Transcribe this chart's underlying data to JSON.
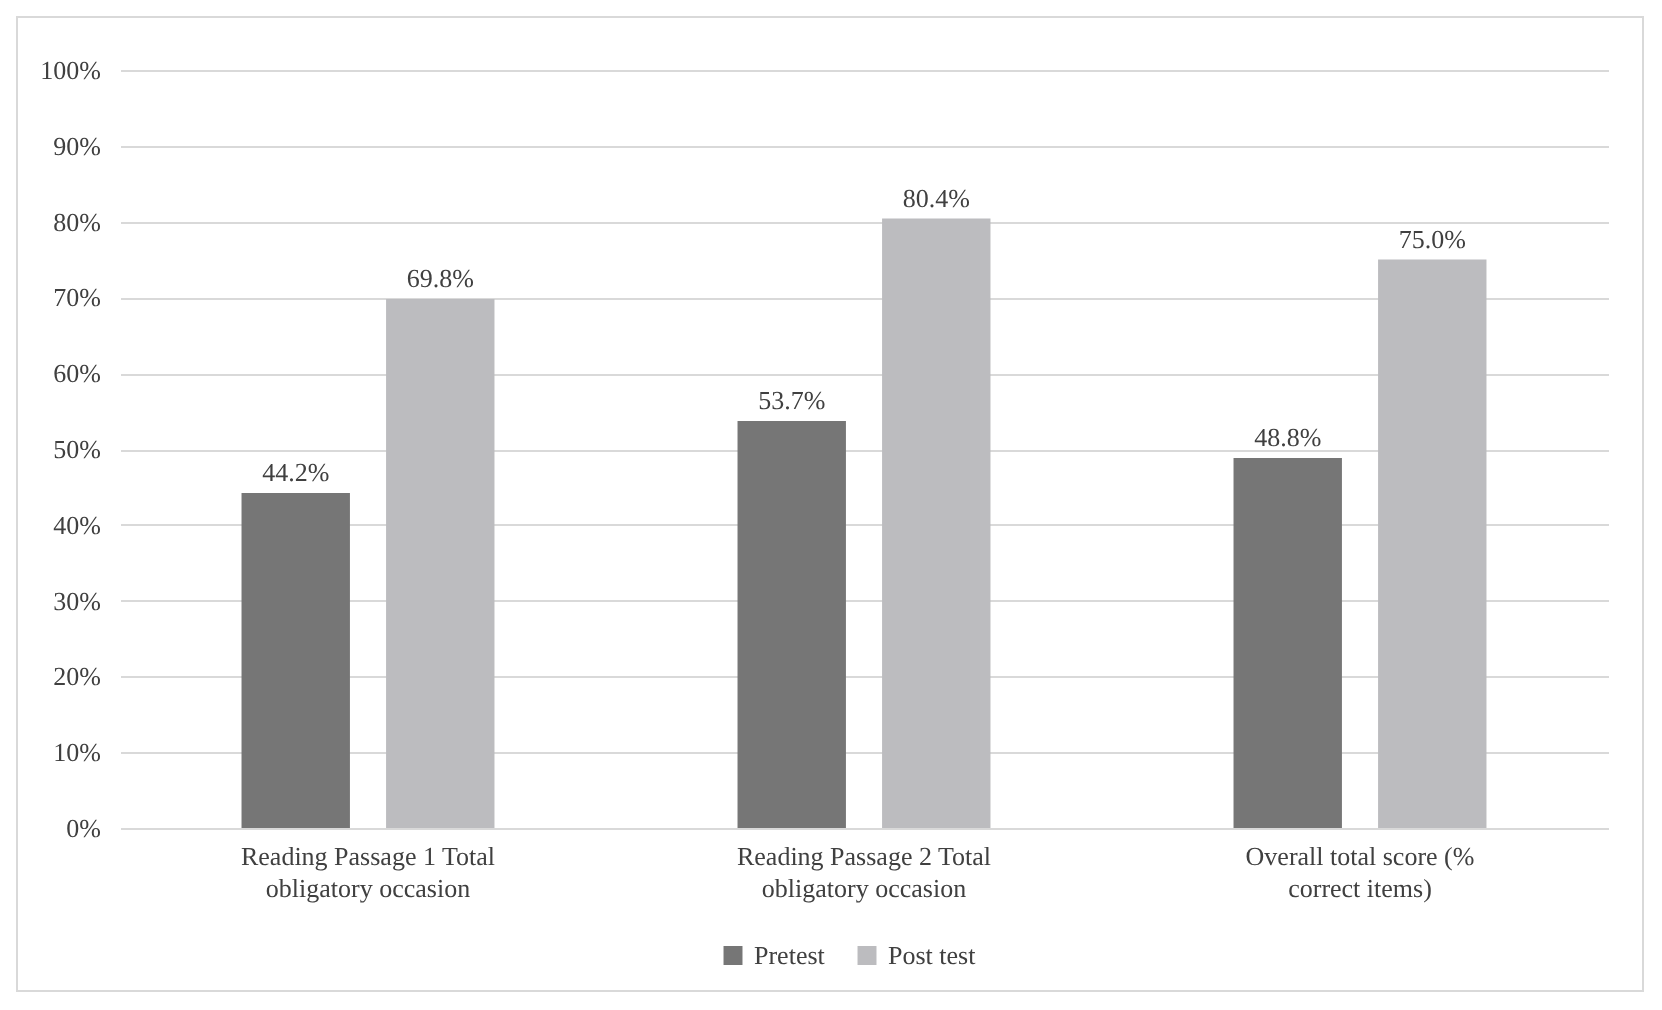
{
  "chart_data": {
    "type": "bar",
    "categories": [
      "Reading Passage 1 Total obligatory occasion",
      "Reading Passage 2 Total obligatory occasion",
      "Overall total score (% correct items)"
    ],
    "series": [
      {
        "name": "Pretest",
        "color": "#767676",
        "values": [
          44.2,
          53.7,
          48.8
        ],
        "value_labels": [
          "44.2%",
          "53.7%",
          "48.8%"
        ]
      },
      {
        "name": "Post test",
        "color": "#bcbcbf",
        "values": [
          69.8,
          80.4,
          75.0
        ],
        "value_labels": [
          "69.8%",
          "80.4%",
          "75.0%"
        ]
      }
    ],
    "ylim": [
      0,
      100
    ],
    "yticks": [
      {
        "value": 0,
        "label": "0%"
      },
      {
        "value": 10,
        "label": "10%"
      },
      {
        "value": 20,
        "label": "20%"
      },
      {
        "value": 30,
        "label": "30%"
      },
      {
        "value": 40,
        "label": "40%"
      },
      {
        "value": 50,
        "label": "50%"
      },
      {
        "value": 60,
        "label": "60%"
      },
      {
        "value": 70,
        "label": "70%"
      },
      {
        "value": 80,
        "label": "80%"
      },
      {
        "value": 90,
        "label": "90%"
      },
      {
        "value": 100,
        "label": "100%"
      }
    ],
    "grid": "y",
    "legend": "bottom"
  }
}
